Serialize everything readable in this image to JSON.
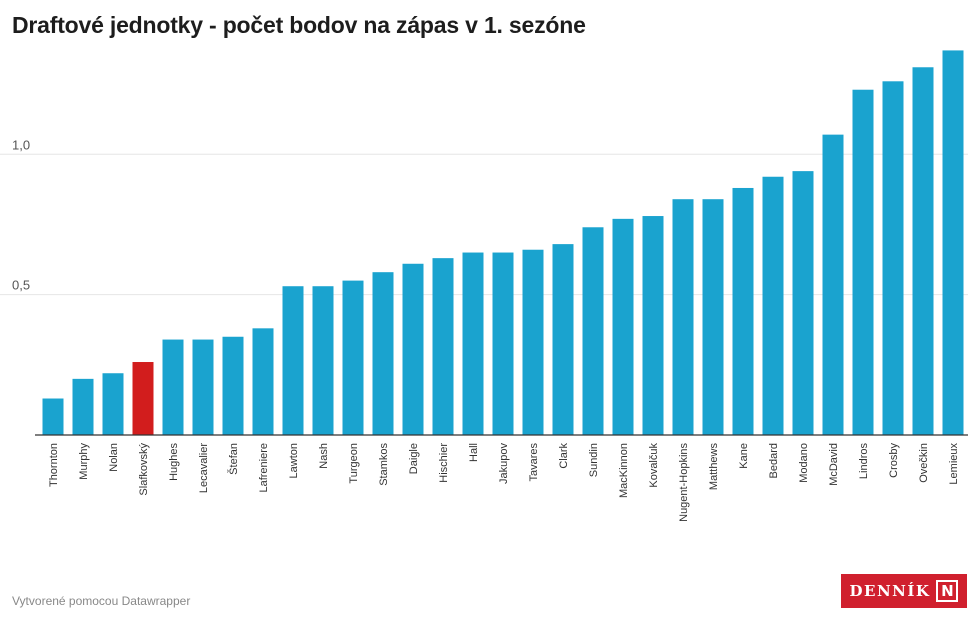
{
  "title": "Draftové jednotky - počet bodov na zápas v 1. sezóne",
  "footer": {
    "credit": "Vytvorené pomocou Datawrapper"
  },
  "logo": {
    "text": "DENNÍK",
    "mark": "N"
  },
  "colors": {
    "bar": "#1aa3cf",
    "highlight": "#d21d1d",
    "grid": "#e6e6e6",
    "axis": "#333333"
  },
  "chart_data": {
    "type": "bar",
    "title": "Draftové jednotky - počet bodov na zápas v 1. sezóne",
    "xlabel": "",
    "ylabel": "",
    "ylim": [
      0,
      1.4
    ],
    "yticks": [
      {
        "value": 0.5,
        "label": "0,5"
      },
      {
        "value": 1.0,
        "label": "1,0"
      }
    ],
    "grid": true,
    "categories": [
      "Thornton",
      "Murphy",
      "Nolan",
      "Slafkovský",
      "Hughes",
      "Lecavalier",
      "Štefan",
      "Lafreniere",
      "Lawton",
      "Nash",
      "Turgeon",
      "Stamkos",
      "Daigle",
      "Hischier",
      "Hall",
      "Jakupov",
      "Tavares",
      "Clark",
      "Sundin",
      "MacKinnon",
      "Kovalčuk",
      "Nugent-Hopkins",
      "Matthews",
      "Kane",
      "Bedard",
      "Modano",
      "McDavid",
      "Lindros",
      "Crosby",
      "Ovečkin",
      "Lemieux"
    ],
    "values": [
      0.13,
      0.2,
      0.22,
      0.26,
      0.34,
      0.34,
      0.35,
      0.38,
      0.53,
      0.53,
      0.55,
      0.58,
      0.61,
      0.63,
      0.65,
      0.65,
      0.66,
      0.68,
      0.74,
      0.77,
      0.78,
      0.84,
      0.84,
      0.88,
      0.92,
      0.94,
      1.07,
      1.23,
      1.26,
      1.31,
      1.37
    ],
    "highlight": "Slafkovský"
  }
}
